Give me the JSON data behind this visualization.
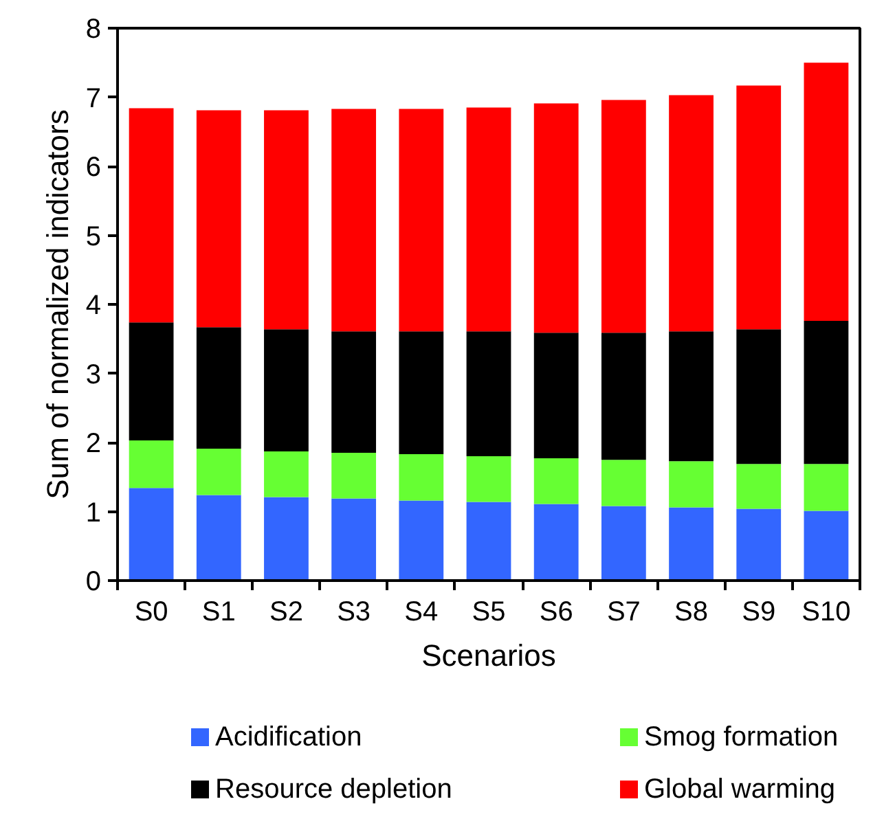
{
  "chart_data": {
    "type": "bar",
    "stacked": true,
    "xlabel": "Scenarios",
    "ylabel": "Sum of normalized indicators",
    "categories": [
      "S0",
      "S1",
      "S2",
      "S3",
      "S4",
      "S5",
      "S6",
      "S7",
      "S8",
      "S9",
      "S10"
    ],
    "ylim": [
      0,
      8
    ],
    "yticks": [
      0,
      1,
      2,
      3,
      4,
      5,
      6,
      7,
      8
    ],
    "grid": false,
    "legend": "bottom",
    "series": [
      {
        "name": "Acidification",
        "color": "#3366ff",
        "values": [
          1.34,
          1.24,
          1.21,
          1.19,
          1.16,
          1.14,
          1.11,
          1.08,
          1.06,
          1.04,
          1.01
        ]
      },
      {
        "name": "Smog formation",
        "color": "#66ff33",
        "values": [
          0.69,
          0.67,
          0.66,
          0.66,
          0.67,
          0.66,
          0.66,
          0.67,
          0.67,
          0.65,
          0.68
        ]
      },
      {
        "name": "Resource depletion",
        "color": "#000000",
        "values": [
          1.71,
          1.76,
          1.77,
          1.76,
          1.78,
          1.81,
          1.82,
          1.84,
          1.88,
          1.95,
          2.07
        ]
      },
      {
        "name": "Global warming",
        "color": "#ff0000",
        "values": [
          3.1,
          3.14,
          3.17,
          3.22,
          3.22,
          3.24,
          3.32,
          3.37,
          3.42,
          3.53,
          3.74
        ]
      }
    ]
  }
}
